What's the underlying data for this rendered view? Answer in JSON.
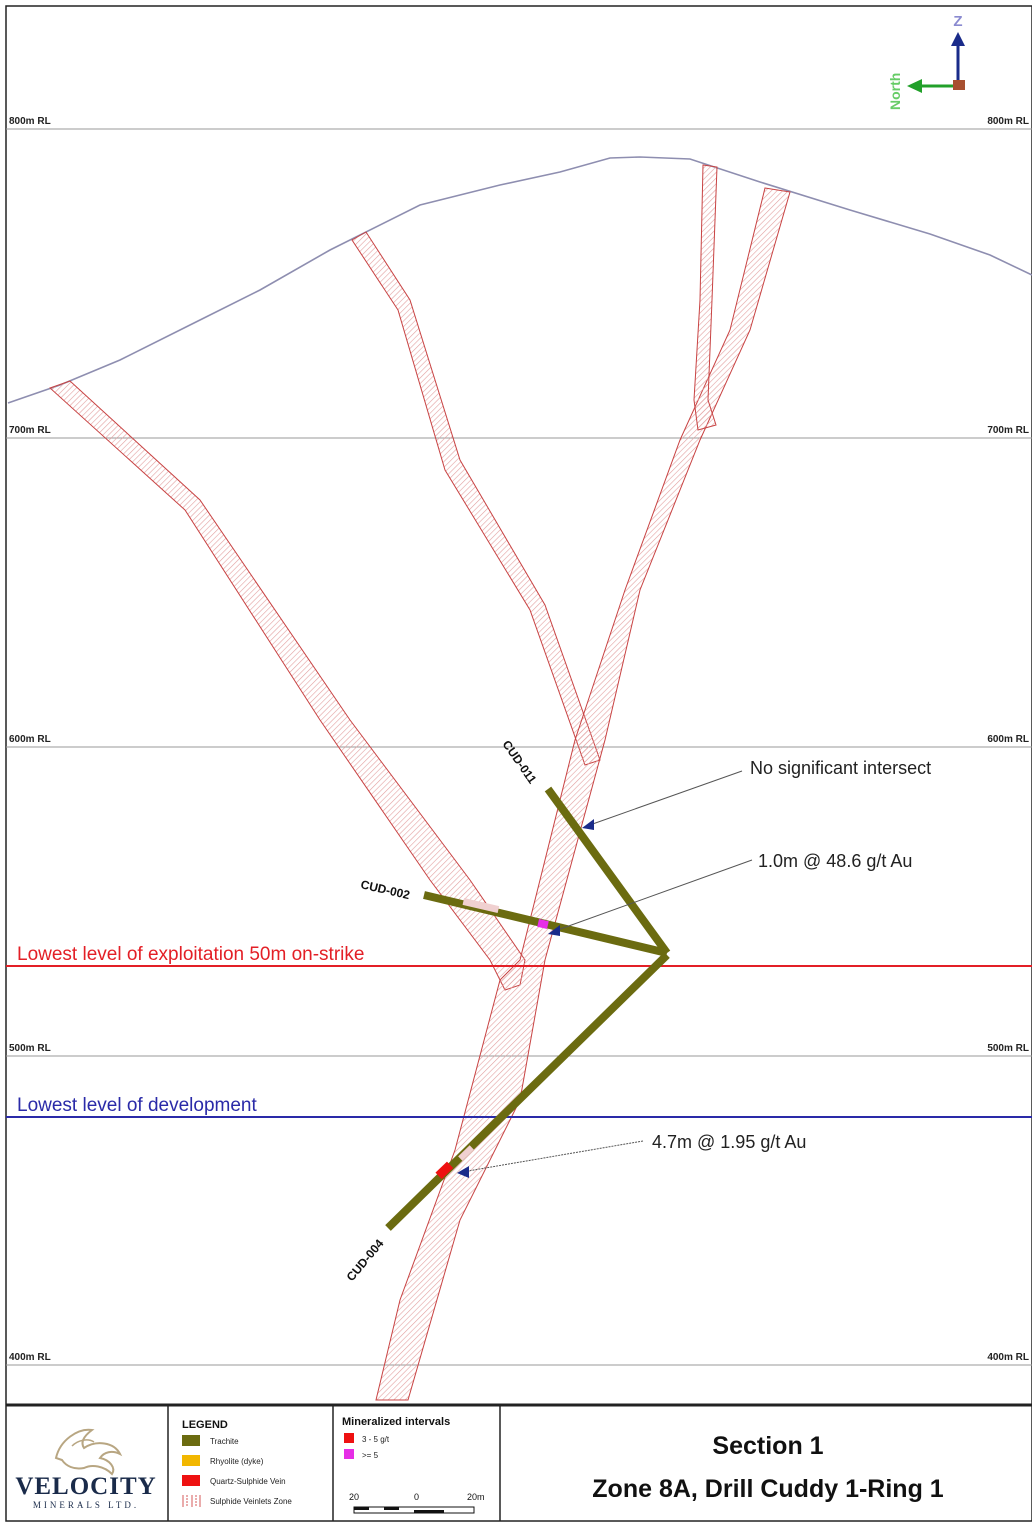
{
  "axes": {
    "z_label": "Z",
    "north_label": "North"
  },
  "rl_labels": {
    "rl800": "800m RL",
    "rl700": "700m RL",
    "rl600": "600m RL",
    "rl500": "500m RL",
    "rl400": "400m RL"
  },
  "levels": {
    "exploitation": "Lowest level of exploitation 50m on-strike",
    "development": "Lowest level of development",
    "exploitation_color": "#e31f26",
    "development_color": "#2a2aa8"
  },
  "drill_holes": {
    "cud011": "CUD-011",
    "cud002": "CUD-002",
    "cud004": "CUD-004",
    "color": "#6b6b10"
  },
  "annotations": {
    "a1": "No significant intersect",
    "a2": "1.0m @ 48.6 g/t Au",
    "a3": "4.7m @ 1.95 g/t Au"
  },
  "legend": {
    "title": "LEGEND",
    "items": [
      "Trachite",
      "Rhyolite (dyke)",
      "Quartz-Sulphide Vein",
      "Sulphide Veinlets Zone"
    ],
    "colors": [
      "#6b6b10",
      "#f2b700",
      "#ee1111",
      "#d65a5a"
    ]
  },
  "mineralized": {
    "title": "Mineralized intervals",
    "items": [
      "3 - 5 g/t",
      ">= 5"
    ],
    "colors": [
      "#ee1111",
      "#e62ee6"
    ]
  },
  "scale_bar": {
    "left": "20",
    "mid": "0",
    "right": "20m"
  },
  "logo": {
    "name": "VELOCITY",
    "sub": "MINERALS LTD."
  },
  "title": {
    "line1": "Section 1",
    "line2": "Zone 8A, Drill Cuddy 1-Ring 1"
  }
}
